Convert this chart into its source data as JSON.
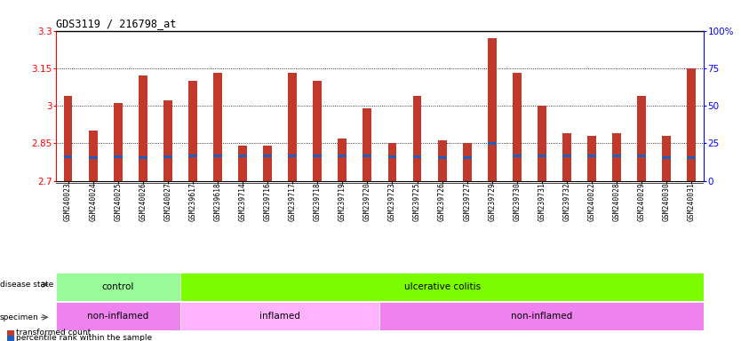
{
  "title": "GDS3119 / 216798_at",
  "samples": [
    "GSM240023",
    "GSM240024",
    "GSM240025",
    "GSM240026",
    "GSM240027",
    "GSM239617",
    "GSM239618",
    "GSM239714",
    "GSM239716",
    "GSM239717",
    "GSM239718",
    "GSM239719",
    "GSM239720",
    "GSM239723",
    "GSM239725",
    "GSM239726",
    "GSM239727",
    "GSM239729",
    "GSM239730",
    "GSM239731",
    "GSM239732",
    "GSM240022",
    "GSM240028",
    "GSM240029",
    "GSM240030",
    "GSM240031"
  ],
  "bar_values": [
    3.04,
    2.9,
    3.01,
    3.12,
    3.02,
    3.1,
    3.13,
    2.84,
    2.84,
    3.13,
    3.1,
    2.87,
    2.99,
    2.85,
    3.04,
    2.86,
    2.85,
    3.27,
    3.13,
    3.0,
    2.89,
    2.88,
    2.89,
    3.04,
    2.88,
    3.15
  ],
  "percentile_values": [
    2.795,
    2.793,
    2.795,
    2.793,
    2.795,
    2.8,
    2.8,
    2.8,
    2.8,
    2.8,
    2.8,
    2.8,
    2.8,
    2.795,
    2.795,
    2.793,
    2.793,
    2.85,
    2.8,
    2.8,
    2.8,
    2.8,
    2.8,
    2.8,
    2.793,
    2.793
  ],
  "bar_color": "#C0392B",
  "percentile_color": "#1F5EBF",
  "ymin": 2.7,
  "ymax": 3.3,
  "yticks": [
    2.7,
    2.85,
    3.0,
    3.15,
    3.3
  ],
  "ytick_labels": [
    "2.7",
    "2.85",
    "3",
    "3.15",
    "3.3"
  ],
  "right_yticks": [
    0,
    25,
    50,
    75,
    100
  ],
  "right_ytick_labels": [
    "0",
    "25",
    "50",
    "75",
    "100%"
  ],
  "grid_values": [
    2.85,
    3.0,
    3.15
  ],
  "disease_state_groups": [
    {
      "label": "control",
      "start": 0,
      "end": 5,
      "color": "#98FB98"
    },
    {
      "label": "ulcerative colitis",
      "start": 5,
      "end": 26,
      "color": "#7CFC00"
    }
  ],
  "specimen_groups": [
    {
      "label": "non-inflamed",
      "start": 0,
      "end": 5,
      "color": "#EE82EE"
    },
    {
      "label": "inflamed",
      "start": 5,
      "end": 13,
      "color": "#FFB3FF"
    },
    {
      "label": "non-inflamed",
      "start": 13,
      "end": 26,
      "color": "#EE82EE"
    }
  ],
  "legend_items": [
    {
      "label": "transformed count",
      "color": "#C0392B"
    },
    {
      "label": "percentile rank within the sample",
      "color": "#1F5EBF"
    }
  ],
  "bar_width": 0.35,
  "background_color": "#FFFFFF"
}
